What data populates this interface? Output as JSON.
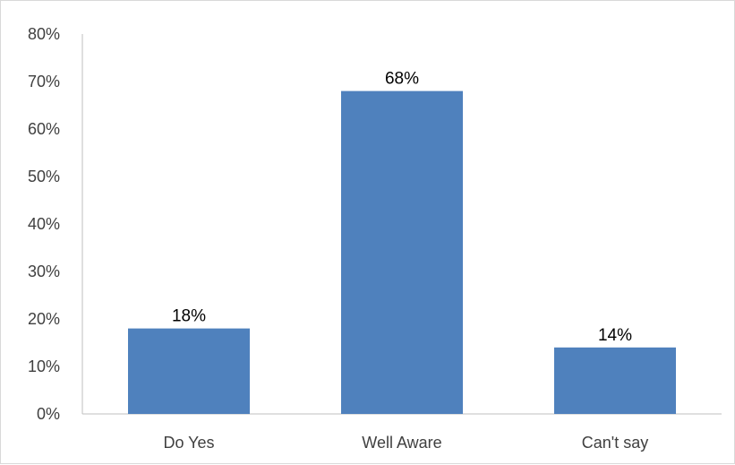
{
  "chart_data": {
    "type": "bar",
    "title": "",
    "xlabel": "",
    "ylabel": "",
    "categories": [
      "Do Yes",
      "Well Aware",
      "Can't say"
    ],
    "values": [
      18,
      68,
      14
    ],
    "data_labels": [
      "18%",
      "68%",
      "14%"
    ],
    "ylim": [
      0,
      80
    ],
    "yticks": [
      0,
      10,
      20,
      30,
      40,
      50,
      60,
      70,
      80
    ],
    "ytick_labels": [
      "0%",
      "10%",
      "20%",
      "30%",
      "40%",
      "50%",
      "60%",
      "70%",
      "80%"
    ],
    "grid": false,
    "legend": "none",
    "bar_color": "#4f81bd",
    "axis_color": "#bfbfbf"
  }
}
